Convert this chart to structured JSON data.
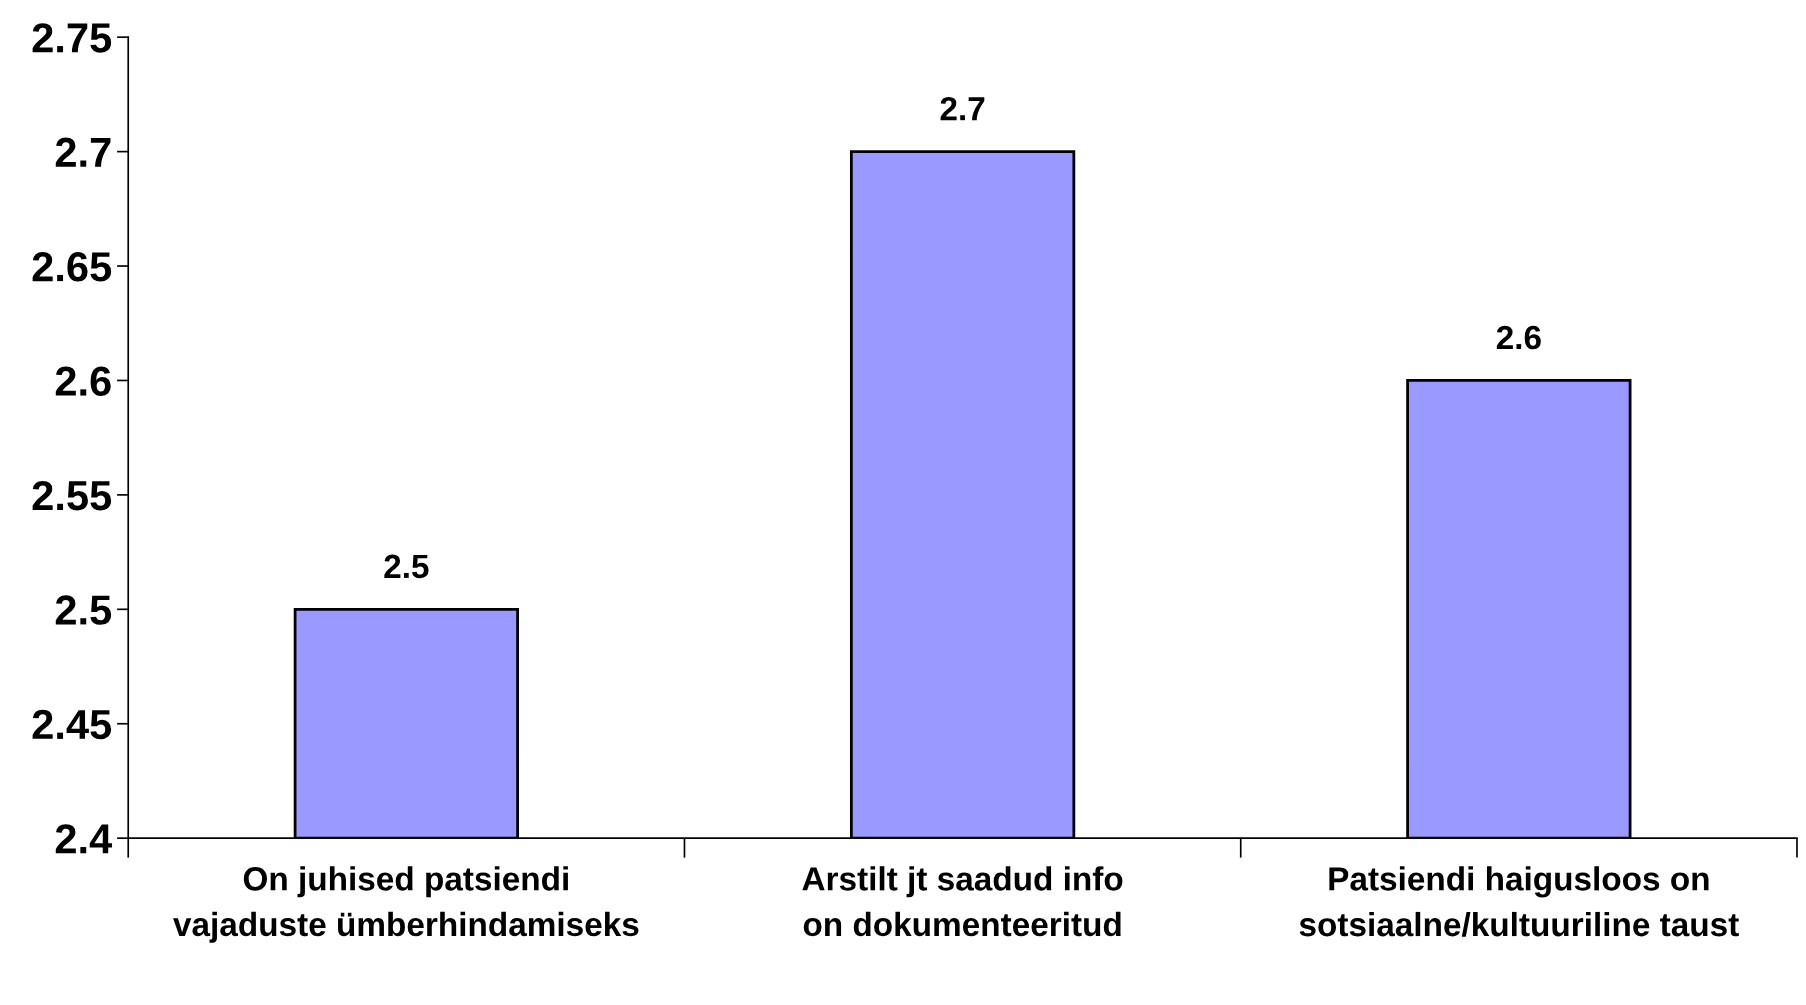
{
  "chart_data": {
    "type": "bar",
    "categories": [
      "On juhised patsiendi vajaduste ümberhindamiseks",
      "Arstilt jt saadud info on dokumenteeritud",
      "Patsiendi haigusloos on sotsiaalne/kultuuriline taust"
    ],
    "values": [
      2.5,
      2.7,
      2.6
    ],
    "color": "#9999ff",
    "ylim": [
      2.4,
      2.75
    ],
    "yticks": [
      2.4,
      2.45,
      2.5,
      2.55,
      2.6,
      2.65,
      2.7,
      2.75
    ],
    "data_labels": true,
    "grid": false
  }
}
